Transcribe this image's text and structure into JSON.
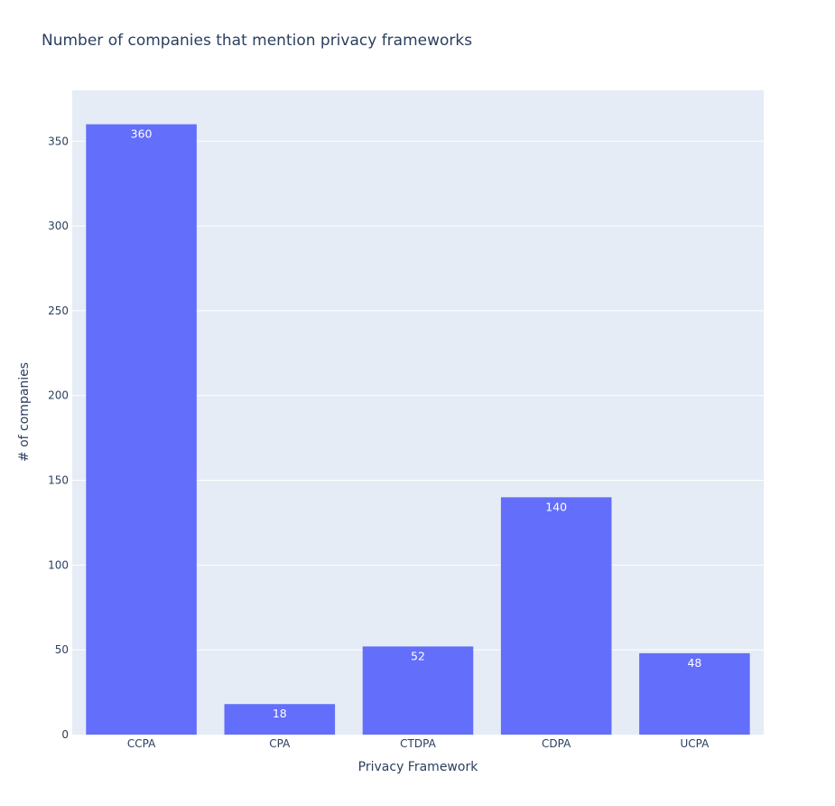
{
  "chart_data": {
    "type": "bar",
    "title": "Number of companies that mention privacy frameworks",
    "xlabel": "Privacy Framework",
    "ylabel": "# of companies",
    "categories": [
      "CCPA",
      "CPA",
      "CTDPA",
      "CDPA",
      "UCPA"
    ],
    "values": [
      360,
      18,
      52,
      140,
      48
    ],
    "ylim": [
      0,
      380
    ],
    "yticks": [
      0,
      50,
      100,
      150,
      200,
      250,
      300,
      350
    ],
    "grid": true,
    "legend": "none",
    "colors": {
      "bar": "#636efa",
      "plot_background": "#e5ecf6",
      "gridline": "#ffffff",
      "text": "#2a3f5f",
      "bar_label": "#ffffff"
    }
  }
}
